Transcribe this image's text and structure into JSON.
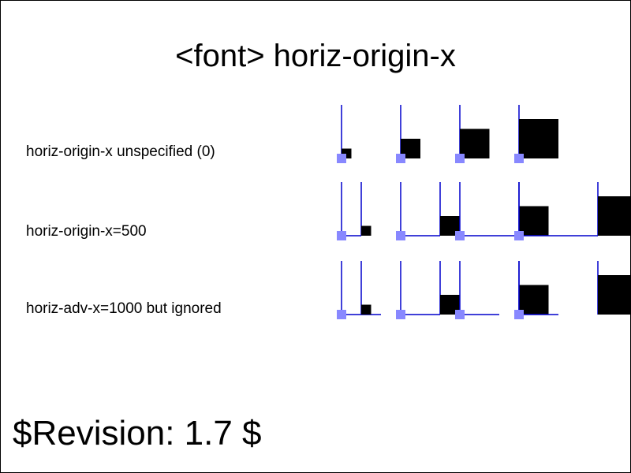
{
  "title": "<font> horiz-origin-x",
  "rows": [
    {
      "label": "horiz-origin-x unspecified (0)",
      "origin_x_shift": 0,
      "adv_line": false
    },
    {
      "label": "horiz-origin-x=500",
      "origin_x_shift": 500,
      "adv_line": false
    },
    {
      "label": "horiz-adv-x=1000 but ignored",
      "origin_x_shift": 500,
      "adv_line": true
    }
  ],
  "glyph_scales": [
    1,
    2,
    3,
    4
  ],
  "colors": {
    "guide_line": "#0000cc",
    "origin_marker": "#8888ff",
    "glyph": "#000000"
  },
  "revision": "$Revision: 1.7 $"
}
